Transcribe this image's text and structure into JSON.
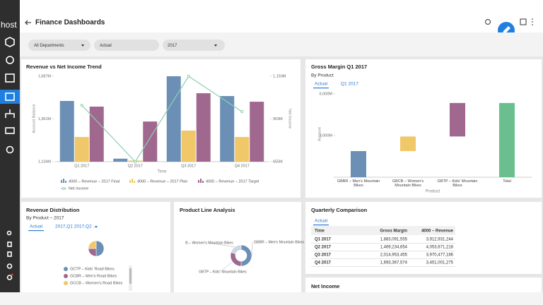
{
  "header": {
    "brand": "host",
    "title": "Finance Dashboards"
  },
  "filters": [
    "All Departments",
    "Actual",
    "2017"
  ],
  "chart_data": [
    {
      "type": "combo",
      "title": "Revenue vs Net Income Trend",
      "x_label": "Time",
      "y_label": "Account Balance",
      "y2_label": "Net Income",
      "categories": [
        "Q1 2017",
        "Q2 2017",
        "Q3 2017",
        "Q4 2017"
      ],
      "series": [
        {
          "name": "4000 – Revenue – 2017 Final",
          "type": "bar",
          "color": "#6b8fb5",
          "values": [
            1456,
            1150,
            1587,
            1482
          ]
        },
        {
          "name": "4000 – Revenue – 2017 Plan",
          "type": "bar",
          "color": "#f0c86a",
          "values": [
            1265,
            1140,
            1299,
            1265
          ]
        },
        {
          "name": "4000 – Revenue – 2017 Target",
          "type": "bar",
          "color": "#a0688f",
          "values": [
            1426,
            1347,
            1497,
            1452
          ]
        },
        {
          "name": "Net Income",
          "type": "line",
          "axis": "y2",
          "color": "#8ccfb0",
          "values": [
            982,
            655,
            1150,
            945
          ]
        }
      ],
      "ylim": [
        1134,
        1587
      ],
      "yticks": [
        {
          "value": 1134,
          "label": "1,134M"
        },
        {
          "value": 1361,
          "label": "1,361M"
        },
        {
          "value": 1587,
          "label": "1,587M"
        }
      ],
      "y2lim": [
        655,
        1150
      ],
      "y2ticks": [
        {
          "value": 655,
          "label": "655M"
        },
        {
          "value": 903,
          "label": "903M"
        },
        {
          "value": 1150,
          "label": "1,150M"
        }
      ],
      "grid": false
    },
    {
      "type": "waterfall",
      "title": "Gross Margin Q1 2017",
      "subtitle": "By Product",
      "tabs": [
        "Actual",
        "Q1 2017"
      ],
      "x_label": "Product",
      "y_label": "Account",
      "categories": [
        "GBBR – Men's Mountain Bikes",
        "GBCB – Women's Mountain Bikes",
        "GBTP – Kids' Mountain Bikes",
        "Total"
      ],
      "values": [
        1880,
        1050,
        2410,
        5340
      ],
      "colors": [
        "#6b8fb5",
        "#f0c86a",
        "#a0688f",
        "#6bbf8f"
      ],
      "total_index": 3,
      "ylim": [
        0,
        6400
      ],
      "yticks": [
        {
          "value": 3000,
          "label": "3,000M"
        },
        {
          "value": 6000,
          "label": "6,000M"
        }
      ]
    },
    {
      "type": "pie",
      "title": "Revenue Distribution",
      "subtitle": "By Product – 2017",
      "tabs": [
        "Actual",
        "2017,Q1 2017,Q2 ..."
      ],
      "categories": [
        "GCTP – Kids' Road Bikes",
        "GCBR – Men's Road Bikes",
        "GCCB – Women's Road Bikes"
      ],
      "values": [
        50,
        25,
        25
      ],
      "colors": [
        "#6b8fb5",
        "#a0688f",
        "#f0c86a"
      ]
    },
    {
      "type": "donut",
      "title": "Product Line Analysis",
      "categories": [
        "GBBR – Men's Mountain Bikes",
        "GBTP – Kids' Mountain Bikes",
        "B – Women's Mountain Bikes"
      ],
      "values": [
        50,
        30,
        20
      ],
      "colors": [
        "#6b8fb5",
        "#a0688f",
        "#c9d6e3"
      ]
    }
  ],
  "table": {
    "title": "Quarterly Comparison",
    "tab": "Actual",
    "columns": [
      "Time",
      "Gross Margin",
      "4000 – Revenue"
    ],
    "rows": [
      [
        "Q1 2017",
        "1,883,091,555",
        "3,912,931,244"
      ],
      [
        "Q2 2017",
        "1,469,234,654",
        "4,053,671,218"
      ],
      [
        "Q3 2017",
        "2,014,953,455",
        "3,970,477,186"
      ],
      [
        "Q4 2017",
        "1,693,367,574",
        "3,451,001,275"
      ]
    ]
  },
  "net_income_panel": {
    "title": "Net Income"
  }
}
